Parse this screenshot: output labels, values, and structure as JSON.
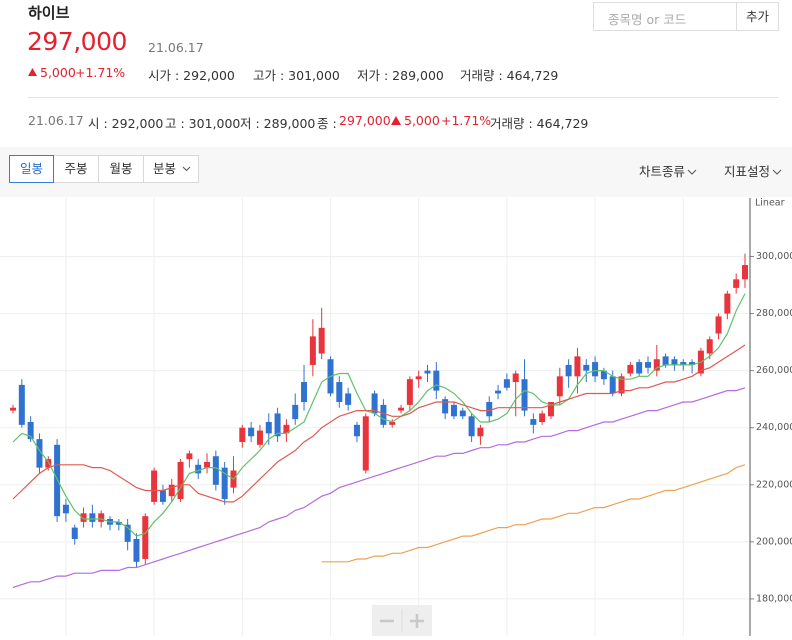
{
  "header": {
    "title": "하이브",
    "price": "297,000",
    "date": "21.06.17",
    "change": "5,000",
    "change_pct": "+1.71%",
    "stats": [
      "시가 : 292,000",
      "고가 : 301,000",
      "저가 : 289,000",
      "거래량 : 464,729"
    ]
  },
  "search": {
    "placeholder": "종목명 or 코드",
    "button": "추가"
  },
  "summary": {
    "date": "21.06.17",
    "items": [
      "시 : 292,000",
      "고 : 301,000",
      "저 : 289,000"
    ],
    "close_label": "종 :",
    "close": "297,000",
    "change": "5,000",
    "change_pct": "+1.71%",
    "volume": "거래량 : 464,729"
  },
  "tabs": [
    "일봉",
    "주봉",
    "월봉",
    "분봉"
  ],
  "menus": [
    "차트종류",
    "지표설정"
  ],
  "chart_data": {
    "type": "candlestick",
    "scale_label": "Linear",
    "ylim": [
      167000,
      320500
    ],
    "yticks": [
      {
        "value": 180000,
        "label": "180,000"
      },
      {
        "value": 200000,
        "label": "200,000"
      },
      {
        "value": 220000,
        "label": "220,000"
      },
      {
        "value": 240000,
        "label": "240,000"
      },
      {
        "value": 260000,
        "label": "260,000"
      },
      {
        "value": 280000,
        "label": "280,000"
      },
      {
        "value": 300000,
        "label": "300,000"
      }
    ],
    "up_color": "#e8343c",
    "down_color": "#2f72cf",
    "open": [
      246000,
      255000,
      242000,
      236000,
      226000,
      234000,
      213000,
      205000,
      207000,
      210000,
      207000,
      208000,
      207000,
      206000,
      201000,
      194000,
      214000,
      218000,
      216000,
      215000,
      229000,
      227000,
      226000,
      230000,
      226000,
      219000,
      235000,
      240000,
      234000,
      242000,
      245000,
      238000,
      248000,
      256000,
      262000,
      266000,
      264000,
      256000,
      252000,
      241000,
      225000,
      252000,
      248000,
      241000,
      246000,
      248000,
      257000,
      260000,
      260000,
      250000,
      248000,
      246000,
      244000,
      237000,
      249000,
      253000,
      257000,
      256000,
      257000,
      243000,
      242000,
      244000,
      251000,
      262000,
      258000,
      262000,
      263000,
      260000,
      258000,
      252000,
      259000,
      263000,
      263000,
      260000,
      265000,
      264000,
      263000,
      263000,
      259000,
      266000,
      273000,
      280000,
      289000,
      292000
    ],
    "high": [
      248000,
      257000,
      244000,
      238000,
      230000,
      236000,
      215000,
      206000,
      212000,
      213000,
      211000,
      209000,
      208000,
      208000,
      203000,
      210000,
      226000,
      220000,
      222000,
      229000,
      232000,
      229000,
      231000,
      232000,
      228000,
      230000,
      241000,
      242000,
      241000,
      245000,
      247000,
      243000,
      252000,
      262000,
      278000,
      282000,
      265000,
      258000,
      254000,
      242000,
      245000,
      253000,
      250000,
      243000,
      248000,
      258000,
      260000,
      262000,
      263000,
      251000,
      249000,
      247000,
      245000,
      241000,
      251000,
      255000,
      259000,
      260000,
      264000,
      245000,
      246000,
      249000,
      261000,
      264000,
      268000,
      264000,
      265000,
      261000,
      260000,
      259000,
      263000,
      264000,
      265000,
      269000,
      266000,
      265000,
      264000,
      264000,
      268000,
      272000,
      280000,
      288000,
      294000,
      301000
    ],
    "low": [
      245000,
      240000,
      235000,
      224000,
      225000,
      207000,
      207000,
      199000,
      205000,
      205000,
      205000,
      204000,
      204000,
      197000,
      191000,
      192000,
      213000,
      213000,
      214000,
      214000,
      226000,
      222000,
      224000,
      218000,
      213000,
      217000,
      233000,
      235000,
      233000,
      234000,
      235000,
      235000,
      241000,
      246000,
      258000,
      264000,
      251000,
      247000,
      246000,
      235000,
      224000,
      244000,
      240000,
      240000,
      245000,
      246000,
      254000,
      256000,
      250000,
      243000,
      243000,
      243000,
      235000,
      234000,
      242000,
      250000,
      253000,
      244000,
      244000,
      238000,
      241000,
      243000,
      248000,
      254000,
      252000,
      256000,
      256000,
      255000,
      251000,
      251000,
      258000,
      258000,
      259000,
      258000,
      261000,
      260000,
      260000,
      259000,
      258000,
      264000,
      271000,
      278000,
      287000,
      289000
    ],
    "close": [
      247000,
      241000,
      236000,
      226000,
      229000,
      209000,
      210000,
      201000,
      210000,
      207000,
      210000,
      206000,
      206000,
      200000,
      193000,
      209000,
      225000,
      214000,
      220000,
      228000,
      231000,
      224000,
      228000,
      220000,
      215000,
      225000,
      240000,
      237000,
      239000,
      238000,
      237000,
      241000,
      243000,
      249000,
      272000,
      275000,
      252000,
      249000,
      248000,
      237000,
      244000,
      245000,
      241000,
      242000,
      247000,
      257000,
      258000,
      259000,
      253000,
      245000,
      244000,
      244000,
      237000,
      240000,
      244000,
      252000,
      254000,
      259000,
      246000,
      241000,
      245000,
      249000,
      258000,
      258000,
      265000,
      260000,
      258000,
      257000,
      252000,
      258000,
      262000,
      259000,
      261000,
      264000,
      262000,
      262000,
      262000,
      262000,
      267000,
      271000,
      279000,
      287000,
      292000,
      297000
    ],
    "series": [
      {
        "color": "#5fc26a",
        "values": [
          235000,
          238000,
          237000,
          232000,
          228000,
          222000,
          216000,
          211000,
          208000,
          208000,
          208000,
          207000,
          207000,
          205000,
          202000,
          203000,
          207000,
          210000,
          214000,
          219000,
          224000,
          225000,
          226000,
          226000,
          224000,
          222000,
          226000,
          229000,
          232000,
          236000,
          238000,
          238000,
          240000,
          242000,
          249000,
          256000,
          258000,
          259000,
          259000,
          252000,
          246000,
          245000,
          243000,
          242000,
          244000,
          246000,
          249000,
          253000,
          255000,
          254000,
          252000,
          249000,
          245000,
          242000,
          242000,
          243000,
          245000,
          250000,
          253000,
          252000,
          249000,
          248000,
          248000,
          250000,
          255000,
          259000,
          260000,
          260000,
          258000,
          257000,
          257000,
          258000,
          258000,
          261000,
          262000,
          262000,
          262000,
          262000,
          263000,
          265000,
          268000,
          273000,
          281000,
          287000
        ]
      },
      {
        "color": "#df5a52",
        "values": [
          215000,
          218000,
          221000,
          224000,
          226000,
          227000,
          227000,
          227000,
          227000,
          226000,
          226000,
          225000,
          223000,
          221000,
          219000,
          218000,
          218000,
          218000,
          219000,
          220000,
          220000,
          217000,
          216000,
          215000,
          214000,
          214000,
          216000,
          219000,
          222000,
          225000,
          228000,
          230000,
          232000,
          235000,
          237000,
          240000,
          242000,
          244000,
          245000,
          246000,
          246000,
          246000,
          245000,
          244000,
          244000,
          245000,
          247000,
          248000,
          249000,
          249000,
          249000,
          248000,
          247000,
          246000,
          246000,
          247000,
          247000,
          247000,
          247000,
          247000,
          247000,
          248000,
          249000,
          250000,
          251000,
          252000,
          252000,
          252000,
          252000,
          253000,
          253000,
          254000,
          254000,
          255000,
          256000,
          256000,
          257000,
          258000,
          260000,
          261000,
          263000,
          265000,
          267000,
          269000
        ]
      },
      {
        "color": "#b46ce0",
        "values": [
          184000,
          185000,
          186000,
          186000,
          187000,
          188000,
          188000,
          189000,
          189000,
          189000,
          190000,
          190000,
          190000,
          191000,
          191000,
          192000,
          193000,
          194000,
          195000,
          196000,
          197000,
          198000,
          199000,
          200000,
          201000,
          202000,
          203000,
          204000,
          205000,
          207000,
          208000,
          209000,
          211000,
          212000,
          214000,
          216000,
          217000,
          219000,
          220000,
          221000,
          222000,
          223000,
          224000,
          225000,
          226000,
          227000,
          228000,
          229000,
          230000,
          230000,
          231000,
          231000,
          232000,
          233000,
          233000,
          234000,
          234000,
          235000,
          235000,
          236000,
          237000,
          237000,
          238000,
          239000,
          239000,
          240000,
          241000,
          242000,
          242000,
          243000,
          244000,
          245000,
          246000,
          246000,
          247000,
          248000,
          249000,
          249000,
          250000,
          251000,
          252000,
          253000,
          253000,
          254000
        ]
      },
      {
        "color": "#eea24f",
        "values": [
          null,
          null,
          null,
          null,
          null,
          null,
          null,
          null,
          null,
          null,
          null,
          null,
          null,
          null,
          null,
          null,
          null,
          null,
          null,
          null,
          null,
          null,
          null,
          null,
          null,
          null,
          null,
          null,
          null,
          null,
          null,
          null,
          null,
          null,
          null,
          193000,
          193000,
          193000,
          193000,
          194000,
          194000,
          195000,
          195000,
          196000,
          196000,
          197000,
          198000,
          198000,
          199000,
          200000,
          201000,
          202000,
          202000,
          203000,
          204000,
          205000,
          205000,
          206000,
          206000,
          207000,
          208000,
          208000,
          209000,
          210000,
          210000,
          211000,
          212000,
          212000,
          213000,
          214000,
          215000,
          215000,
          216000,
          217000,
          218000,
          218000,
          219000,
          220000,
          221000,
          222000,
          223000,
          224000,
          226000,
          227000
        ]
      }
    ],
    "grid": true
  }
}
